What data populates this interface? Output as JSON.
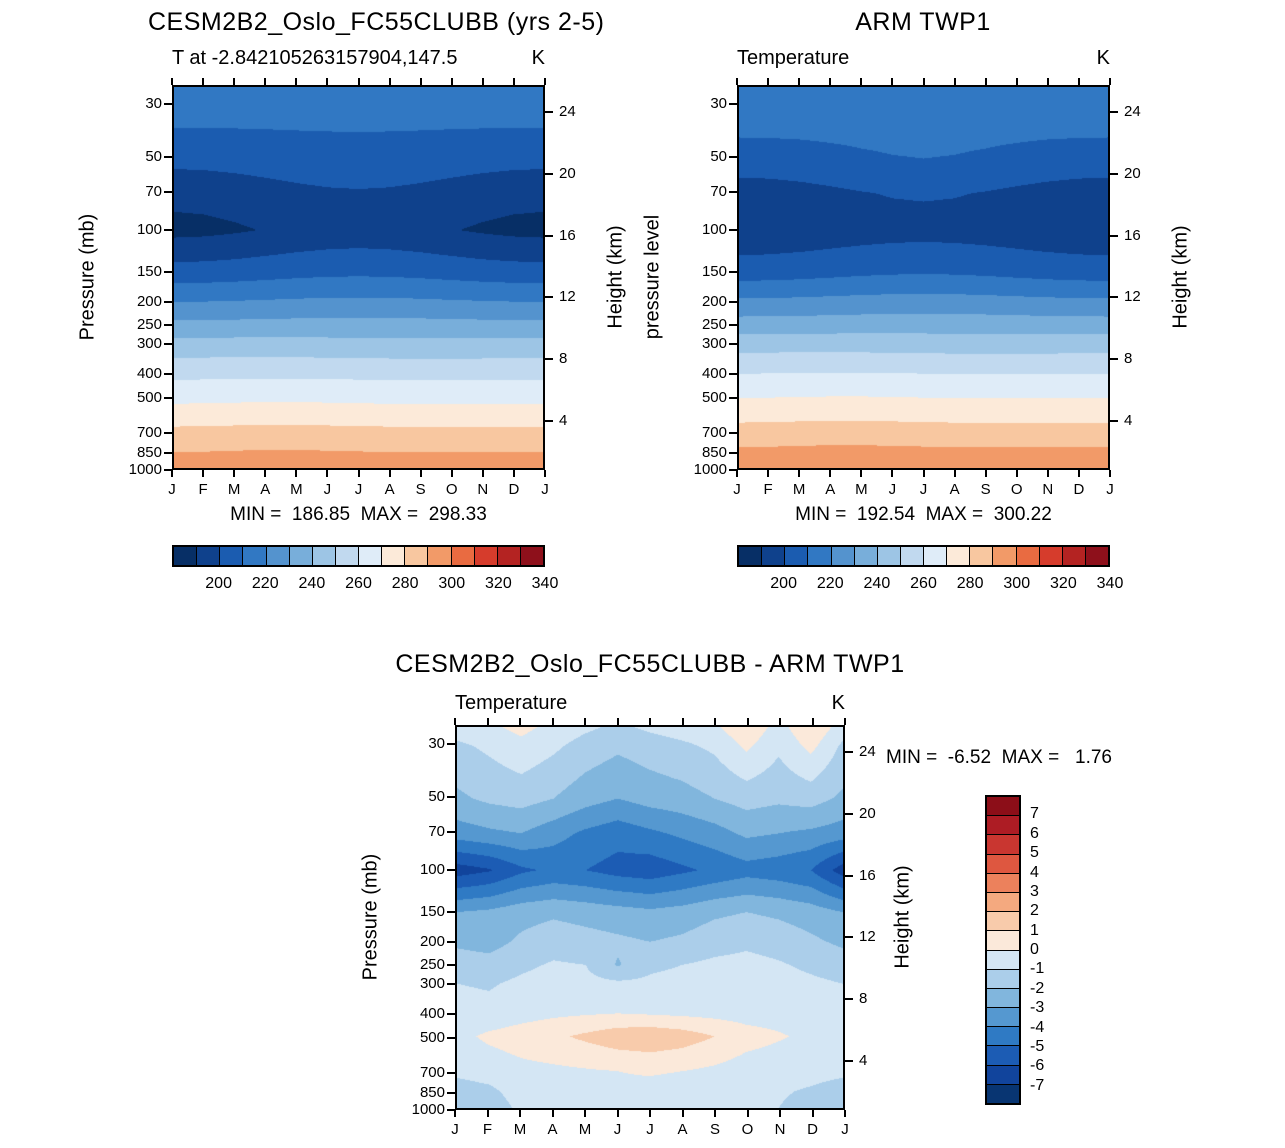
{
  "figure": {
    "background": "#ffffff",
    "text_color": "#000000"
  },
  "chart_data": [
    {
      "type": "heatmap",
      "title": "CESM2B2_Oslo_FC55CLUBB (yrs 2-5)",
      "subtitle": "T at -2.842105263157904,147.5",
      "units": "K",
      "ylabel": "Pressure (mb)",
      "ylabel_right": "Height (km)",
      "minmax": "MIN =  186.85  MAX =  298.33",
      "min": 186.85,
      "max": 298.33,
      "x_ticks": [
        "J",
        "F",
        "M",
        "A",
        "M",
        "J",
        "J",
        "A",
        "S",
        "O",
        "N",
        "D",
        "J"
      ],
      "y_ticks_pressure": [
        30,
        50,
        70,
        100,
        150,
        200,
        250,
        300,
        400,
        500,
        700,
        850,
        1000
      ],
      "y_ticks_height": [
        24,
        20,
        16,
        12,
        8,
        4
      ],
      "pressure_range": [
        25,
        1000
      ],
      "levels": [
        190,
        200,
        210,
        220,
        230,
        240,
        250,
        260,
        270,
        280,
        290,
        300,
        310,
        320,
        330
      ],
      "colors": [
        "#072f66",
        "#0f418c",
        "#1b5cb0",
        "#3178c3",
        "#5493ce",
        "#78aeda",
        "#9dc5e5",
        "#c1d9ef",
        "#dfecf8",
        "#fcead9",
        "#f8c7a0",
        "#f29a68",
        "#e96b41",
        "#d63c2c",
        "#b42322",
        "#8e101b"
      ],
      "colorbar_labels": [
        "200",
        "220",
        "240",
        "260",
        "280",
        "300",
        "320",
        "340"
      ],
      "pressures": [
        25,
        30,
        50,
        70,
        100,
        150,
        200,
        250,
        300,
        400,
        500,
        700,
        850,
        1000
      ],
      "values": [
        [
          219,
          218.7,
          218,
          217,
          216,
          215.3,
          215,
          215.3,
          216,
          217,
          218,
          218.7,
          219
        ],
        [
          215,
          214.9,
          214.5,
          214,
          213.5,
          213.1,
          213,
          213.1,
          213.5,
          214,
          214.5,
          214.9,
          215
        ],
        [
          203,
          203.3,
          204,
          205,
          206,
          206.7,
          207,
          206.7,
          206,
          205,
          204,
          203.3,
          203
        ],
        [
          193,
          193.4,
          194.5,
          196,
          197.5,
          198.6,
          199,
          198.6,
          197.5,
          196,
          194.5,
          193.4,
          193
        ],
        [
          187,
          187.5,
          188.8,
          190.5,
          192.3,
          193.5,
          194,
          193.5,
          192.3,
          190.5,
          188.8,
          187.5,
          187
        ],
        [
          204,
          204.3,
          205,
          206,
          207,
          207.7,
          208,
          207.7,
          207,
          206,
          205,
          204.3,
          204
        ],
        [
          220,
          220.1,
          220.5,
          221,
          221.5,
          221.9,
          222,
          221.9,
          221.5,
          221,
          220.5,
          220.1,
          220
        ],
        [
          232.5,
          232.6,
          232.8,
          233,
          233.3,
          233.4,
          233.5,
          233.4,
          233.3,
          233,
          232.8,
          232.6,
          232.5
        ],
        [
          243.2,
          243.4,
          243.5,
          243.5,
          243.4,
          243.2,
          243,
          242.8,
          242.7,
          242.7,
          242.8,
          243,
          243.2
        ],
        [
          257.3,
          257.5,
          257.7,
          257.8,
          257.8,
          257.6,
          257.4,
          257.2,
          257.1,
          257.1,
          257.2,
          257.3,
          257.3
        ],
        [
          266.8,
          267,
          267.3,
          267.5,
          267.5,
          267.3,
          267,
          266.8,
          266.7,
          266.7,
          266.8,
          266.8,
          266.8
        ],
        [
          282,
          282.2,
          282.5,
          282.7,
          282.7,
          282.5,
          282.2,
          282,
          281.9,
          281.9,
          282,
          282,
          282
        ],
        [
          289.6,
          289.8,
          290.2,
          290.5,
          290.5,
          290.2,
          289.9,
          289.7,
          289.6,
          289.6,
          289.7,
          289.6,
          289.6
        ],
        [
          297.3,
          297.5,
          297.9,
          298.3,
          298.3,
          298,
          297.6,
          297.3,
          297.2,
          297.3,
          297.5,
          297.4,
          297.3
        ]
      ]
    },
    {
      "type": "heatmap",
      "title": "ARM TWP1",
      "subtitle": "Temperature",
      "units": "K",
      "ylabel": "pressure level",
      "ylabel_right": "Height (km)",
      "minmax": "MIN =  192.54  MAX =  300.22",
      "min": 192.54,
      "max": 300.22,
      "x_ticks": [
        "J",
        "F",
        "M",
        "A",
        "M",
        "J",
        "J",
        "A",
        "S",
        "O",
        "N",
        "D",
        "J"
      ],
      "y_ticks_pressure": [
        30,
        50,
        70,
        100,
        150,
        200,
        250,
        300,
        400,
        500,
        700,
        850,
        1000
      ],
      "y_ticks_height": [
        24,
        20,
        16,
        12,
        8,
        4
      ],
      "pressure_range": [
        25,
        1000
      ],
      "levels": [
        190,
        200,
        210,
        220,
        230,
        240,
        250,
        260,
        270,
        280,
        290,
        300,
        310,
        320,
        330
      ],
      "colors": [
        "#072f66",
        "#0f418c",
        "#1b5cb0",
        "#3178c3",
        "#5493ce",
        "#78aeda",
        "#9dc5e5",
        "#c1d9ef",
        "#dfecf8",
        "#fcead9",
        "#f8c7a0",
        "#f29a68",
        "#e96b41",
        "#d63c2c",
        "#b42322",
        "#8e101b"
      ],
      "colorbar_labels": [
        "200",
        "220",
        "240",
        "260",
        "280",
        "300",
        "320",
        "340"
      ],
      "pressures": [
        25,
        30,
        50,
        70,
        100,
        150,
        200,
        250,
        300,
        400,
        500,
        700,
        850,
        1000
      ],
      "values": [
        [
          219.5,
          219.3,
          218.8,
          218,
          217.5,
          217,
          217,
          217,
          217.5,
          218,
          218.8,
          219.3,
          219.5
        ],
        [
          216,
          215.8,
          215.3,
          214.8,
          214.3,
          214,
          214,
          214,
          214.3,
          214.8,
          215.3,
          215.8,
          216
        ],
        [
          206,
          206.3,
          207,
          208,
          209,
          209.7,
          210,
          209.7,
          209,
          208,
          207,
          206.3,
          206
        ],
        [
          195,
          195.4,
          196.5,
          198,
          199.5,
          200.6,
          201,
          200.6,
          199.5,
          198,
          196.5,
          195.4,
          195
        ],
        [
          192.5,
          192.8,
          193.5,
          194.5,
          195.5,
          196.2,
          196.5,
          196.2,
          195.5,
          194.5,
          193.5,
          192.8,
          192.5
        ],
        [
          205,
          205.3,
          206,
          207,
          208,
          208.7,
          209,
          208.7,
          208,
          207,
          206,
          205.3,
          205
        ],
        [
          222,
          222.1,
          222.5,
          223,
          223.5,
          223.9,
          224,
          223.9,
          223.5,
          223,
          222.5,
          222.1,
          222
        ],
        [
          234.5,
          234.6,
          234.8,
          235,
          235.3,
          235.4,
          235.5,
          235.4,
          235.3,
          235,
          234.8,
          234.6,
          234.5
        ],
        [
          245.5,
          245.7,
          245.8,
          245.8,
          245.7,
          245.5,
          245.3,
          245.1,
          245,
          245,
          245.1,
          245.3,
          245.5
        ],
        [
          259.8,
          260,
          260.2,
          260.3,
          260.3,
          260.1,
          259.9,
          259.7,
          259.6,
          259.6,
          259.7,
          259.8,
          259.8
        ],
        [
          269.3,
          269.5,
          269.8,
          270,
          270,
          269.8,
          269.5,
          269.3,
          269.2,
          269.2,
          269.3,
          269.3,
          269.3
        ],
        [
          283.5,
          283.7,
          284,
          284.2,
          284.2,
          284,
          283.7,
          283.5,
          283.4,
          283.4,
          283.5,
          283.5,
          283.5
        ],
        [
          291.6,
          291.8,
          292.2,
          292.5,
          292.5,
          292.2,
          291.9,
          291.7,
          291.6,
          291.6,
          291.7,
          291.6,
          291.6
        ],
        [
          299.2,
          299.5,
          299.9,
          300.2,
          300.2,
          300,
          299.7,
          299.4,
          299.3,
          299.3,
          299.4,
          299.4,
          299.2
        ]
      ]
    },
    {
      "type": "heatmap",
      "title": "CESM2B2_Oslo_FC55CLUBB - ARM TWP1",
      "subtitle": "Temperature",
      "units": "K",
      "ylabel": "Pressure (mb)",
      "ylabel_right": "Height (km)",
      "minmax": "MIN =  -6.52  MAX =   1.76",
      "min": -6.52,
      "max": 1.76,
      "x_ticks": [
        "J",
        "F",
        "M",
        "A",
        "M",
        "J",
        "J",
        "A",
        "S",
        "O",
        "N",
        "D",
        "J"
      ],
      "y_ticks_pressure": [
        30,
        50,
        70,
        100,
        150,
        200,
        250,
        300,
        400,
        500,
        700,
        850,
        1000
      ],
      "y_ticks_height": [
        24,
        20,
        16,
        12,
        8,
        4
      ],
      "pressure_range": [
        25,
        1000
      ],
      "levels": [
        -7,
        -6,
        -5,
        -4,
        -3,
        -2,
        -1,
        0,
        1,
        2,
        3,
        4,
        5,
        6,
        7
      ],
      "colors": [
        "#083572",
        "#11449c",
        "#1c5cb4",
        "#2f7ac4",
        "#5598d0",
        "#81b6dd",
        "#abceea",
        "#d4e6f4",
        "#fbe9da",
        "#f8cbab",
        "#f4a97f",
        "#ec815c",
        "#de5740",
        "#c93630",
        "#ad1c24",
        "#8c0e18"
      ],
      "colorbar_labels": [
        "7",
        "6",
        "5",
        "4",
        "3",
        "2",
        "1",
        "0",
        "-1",
        "-2",
        "-3",
        "-4",
        "-5",
        "-6",
        "-7"
      ],
      "pressures": [
        25,
        30,
        50,
        70,
        100,
        150,
        200,
        250,
        300,
        400,
        500,
        700,
        850,
        1000
      ],
      "values": [
        [
          -0.5,
          -0.2,
          0.3,
          -0.3,
          -0.8,
          -1.2,
          -0.8,
          -0.5,
          -0.2,
          0.8,
          -0.4,
          0.9,
          -0.5
        ],
        [
          -1.2,
          -0.8,
          -0.3,
          -0.8,
          -1.4,
          -1.8,
          -1.5,
          -1.2,
          -0.8,
          0.2,
          -0.8,
          0.3,
          -1.2
        ],
        [
          -2.2,
          -1.8,
          -1.6,
          -2.0,
          -2.6,
          -3.0,
          -2.6,
          -2.4,
          -2.0,
          -1.6,
          -1.8,
          -1.6,
          -2.2
        ],
        [
          -3.5,
          -3.2,
          -3.0,
          -3.6,
          -4.2,
          -4.6,
          -4.2,
          -3.8,
          -3.4,
          -2.8,
          -3.0,
          -3.2,
          -3.5
        ],
        [
          -6.5,
          -6.1,
          -5.2,
          -4.8,
          -5.0,
          -5.4,
          -5.6,
          -5.2,
          -4.8,
          -4.4,
          -4.6,
          -5.0,
          -6.5
        ],
        [
          -3.0,
          -2.8,
          -2.4,
          -2.2,
          -2.4,
          -2.6,
          -2.8,
          -2.6,
          -2.2,
          -2.0,
          -2.2,
          -2.5,
          -3.0
        ],
        [
          -2.2,
          -2.4,
          -1.8,
          -1.4,
          -1.6,
          -1.8,
          -2.0,
          -1.8,
          -1.4,
          -1.2,
          -1.4,
          -1.8,
          -2.2
        ],
        [
          -1.5,
          -1.6,
          -1.2,
          -0.9,
          -1.0,
          -2.1,
          -1.2,
          -1.0,
          -0.8,
          -0.7,
          -0.9,
          -1.2,
          -1.5
        ],
        [
          -1.0,
          -1.1,
          -0.8,
          -0.6,
          -0.7,
          -0.8,
          -0.8,
          -0.7,
          -0.5,
          -0.5,
          -0.6,
          -0.8,
          -1.0
        ],
        [
          -0.6,
          -0.7,
          -0.4,
          -0.2,
          -0.1,
          0.0,
          -0.1,
          -0.2,
          -0.3,
          -0.4,
          -0.4,
          -0.5,
          -0.6
        ],
        [
          -0.3,
          0.2,
          0.5,
          0.8,
          1.2,
          1.6,
          1.76,
          1.5,
          1.0,
          0.4,
          0.1,
          -0.2,
          -0.3
        ],
        [
          -0.8,
          -0.6,
          -0.3,
          -0.2,
          -0.1,
          0.0,
          0.1,
          0.0,
          -0.2,
          -0.5,
          -0.6,
          -0.7,
          -0.8
        ],
        [
          -1.4,
          -1.2,
          -0.6,
          -0.4,
          -0.3,
          -0.2,
          -0.3,
          -0.4,
          -0.5,
          -0.8,
          -0.9,
          -1.1,
          -1.4
        ],
        [
          -1.8,
          -1.5,
          -0.8,
          -0.5,
          -0.4,
          -0.3,
          -0.4,
          -0.5,
          -0.6,
          -0.9,
          -1.0,
          -1.3,
          -1.8
        ]
      ]
    }
  ]
}
